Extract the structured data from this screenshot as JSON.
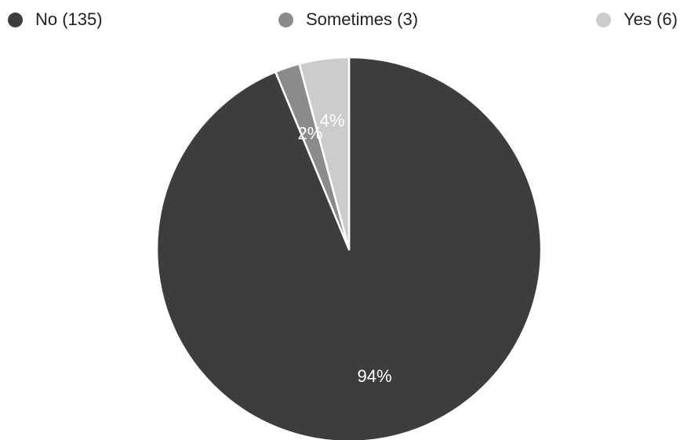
{
  "chart_data": {
    "type": "pie",
    "title": "",
    "legend_position": "top",
    "slices": [
      {
        "label": "No (135)",
        "name": "No",
        "count": 135,
        "percent_label": "94%",
        "color": "#3c3d3c"
      },
      {
        "label": "Sometimes (3)",
        "name": "Sometimes",
        "count": 3,
        "percent_label": "2%",
        "color": "#8a8b8a"
      },
      {
        "label": "Yes (6)",
        "name": "Yes",
        "count": 6,
        "percent_label": "4%",
        "color": "#cbcccb"
      }
    ]
  }
}
